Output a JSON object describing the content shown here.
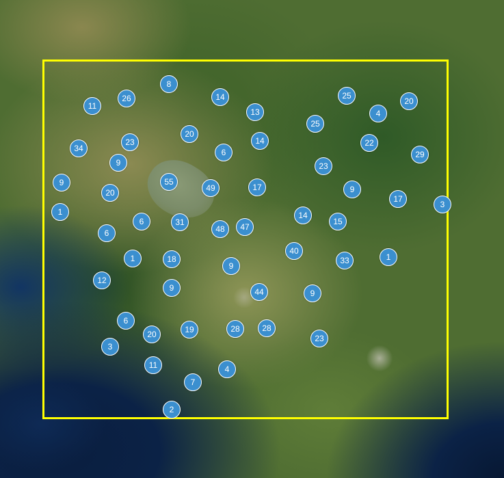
{
  "map": {
    "selection_color": "#ffff00",
    "cluster_color": "#3b8fcf",
    "clusters": [
      {
        "label": "8"
      },
      {
        "label": "26"
      },
      {
        "label": "11"
      },
      {
        "label": "14"
      },
      {
        "label": "13"
      },
      {
        "label": "25"
      },
      {
        "label": "4"
      },
      {
        "label": "20"
      },
      {
        "label": "25"
      },
      {
        "label": "20"
      },
      {
        "label": "34"
      },
      {
        "label": "23"
      },
      {
        "label": "14"
      },
      {
        "label": "22"
      },
      {
        "label": "6"
      },
      {
        "label": "29"
      },
      {
        "label": "9"
      },
      {
        "label": "23"
      },
      {
        "label": "9"
      },
      {
        "label": "55"
      },
      {
        "label": "49"
      },
      {
        "label": "17"
      },
      {
        "label": "9"
      },
      {
        "label": "20"
      },
      {
        "label": "17"
      },
      {
        "label": "3"
      },
      {
        "label": "1"
      },
      {
        "label": "6"
      },
      {
        "label": "31"
      },
      {
        "label": "48"
      },
      {
        "label": "47"
      },
      {
        "label": "14"
      },
      {
        "label": "15"
      },
      {
        "label": "6"
      },
      {
        "label": "40"
      },
      {
        "label": "1"
      },
      {
        "label": "18"
      },
      {
        "label": "9"
      },
      {
        "label": "33"
      },
      {
        "label": "1"
      },
      {
        "label": "12"
      },
      {
        "label": "9"
      },
      {
        "label": "44"
      },
      {
        "label": "9"
      },
      {
        "label": "6"
      },
      {
        "label": "19"
      },
      {
        "label": "28"
      },
      {
        "label": "28"
      },
      {
        "label": "20"
      },
      {
        "label": "23"
      },
      {
        "label": "3"
      },
      {
        "label": "11"
      },
      {
        "label": "4"
      },
      {
        "label": "7"
      },
      {
        "label": "2"
      }
    ]
  }
}
